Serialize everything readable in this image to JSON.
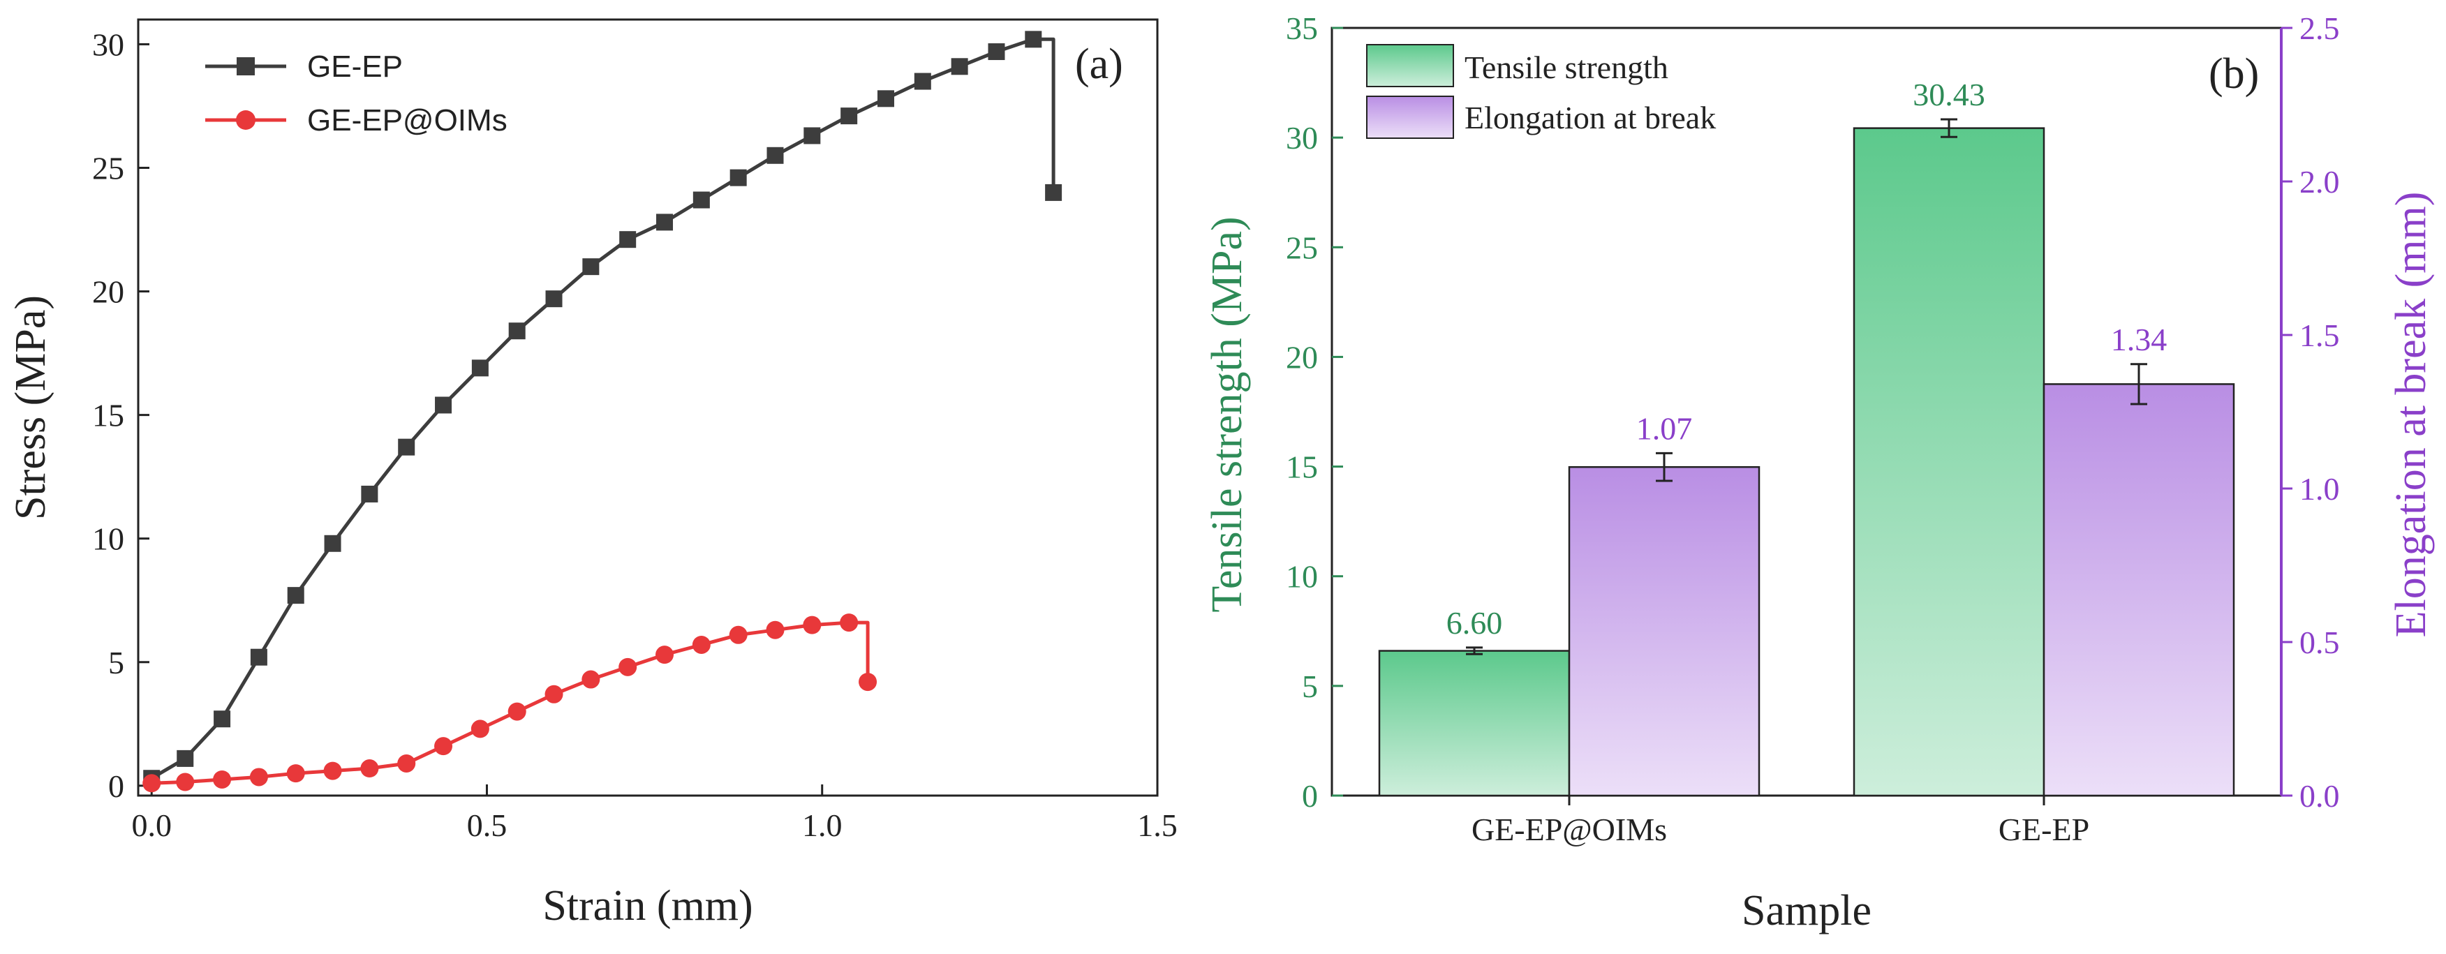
{
  "colors": {
    "ge_ep_line": "#3d3d3d",
    "oims_line": "#e8383a",
    "tensile": "#5cc98c",
    "tensile_light": "#cdeedb",
    "elongation": "#b98ee4",
    "elongation_light": "#ecdff8",
    "tensile_axis": "#2e8b57",
    "elongation_axis": "#8a3fc9"
  },
  "chart_data": [
    {
      "type": "line",
      "panel_label": "(a)",
      "xlabel": "Strain (mm)",
      "ylabel": "Stress (MPa)",
      "xlim": [
        -0.02,
        1.5
      ],
      "ylim": [
        -0.4,
        31
      ],
      "xticks": [
        0.0,
        0.5,
        1.0,
        1.5
      ],
      "xtick_labels": [
        "0.0",
        "0.5",
        "1.0",
        "1.5"
      ],
      "yticks": [
        0,
        5,
        10,
        15,
        20,
        25,
        30
      ],
      "ytick_labels": [
        "0",
        "5",
        "10",
        "15",
        "20",
        "25",
        "30"
      ],
      "legend_position": "top-left",
      "series": [
        {
          "name": "GE-EP",
          "color_key": "ge_ep_line",
          "marker": "square",
          "x": [
            0.0,
            0.05,
            0.105,
            0.16,
            0.215,
            0.27,
            0.325,
            0.38,
            0.435,
            0.49,
            0.545,
            0.6,
            0.655,
            0.71,
            0.765,
            0.82,
            0.875,
            0.93,
            0.985,
            1.04,
            1.095,
            1.15,
            1.205,
            1.26,
            1.315,
            1.345
          ],
          "y": [
            0.3,
            1.1,
            2.7,
            5.2,
            7.7,
            9.8,
            11.8,
            13.7,
            15.4,
            16.9,
            18.4,
            19.7,
            21.0,
            22.1,
            22.8,
            23.7,
            24.6,
            25.5,
            26.3,
            27.1,
            27.8,
            28.5,
            29.1,
            29.7,
            30.2,
            24.0
          ],
          "drop_from_index": 24
        },
        {
          "name": "GE-EP@OIMs",
          "color_key": "oims_line",
          "marker": "circle",
          "x": [
            0.0,
            0.05,
            0.105,
            0.16,
            0.215,
            0.27,
            0.325,
            0.38,
            0.435,
            0.49,
            0.545,
            0.6,
            0.655,
            0.71,
            0.765,
            0.82,
            0.875,
            0.93,
            0.985,
            1.04,
            1.068
          ],
          "y": [
            0.1,
            0.15,
            0.25,
            0.35,
            0.5,
            0.6,
            0.7,
            0.9,
            1.6,
            2.3,
            3.0,
            3.7,
            4.3,
            4.8,
            5.3,
            5.7,
            6.1,
            6.3,
            6.5,
            6.6,
            4.2
          ],
          "drop_from_index": 19
        }
      ]
    },
    {
      "type": "bar",
      "panel_label": "(b)",
      "xlabel": "Sample",
      "ylabel_left": "Tensile strength (MPa)",
      "ylabel_right": "Elongation at break (mm)",
      "categories": [
        "GE-EP@OIMs",
        "GE-EP"
      ],
      "ylim_left": [
        0,
        35
      ],
      "ylim_right": [
        0,
        2.5
      ],
      "yticks_left": [
        0,
        5,
        10,
        15,
        20,
        25,
        30,
        35
      ],
      "ytick_labels_left": [
        "0",
        "5",
        "10",
        "15",
        "20",
        "25",
        "30",
        "35"
      ],
      "yticks_right": [
        0.0,
        0.5,
        1.0,
        1.5,
        2.0,
        2.5
      ],
      "ytick_labels_right": [
        "0.0",
        "0.5",
        "1.0",
        "1.5",
        "2.0",
        "2.5"
      ],
      "legend_position": "top-left",
      "series": [
        {
          "name": "Tensile strength",
          "axis": "left",
          "color_key": "tensile",
          "light_key": "tensile_light",
          "values": [
            6.6,
            30.43
          ],
          "errors": [
            0.15,
            0.4
          ],
          "labels": [
            "6.60",
            "30.43"
          ]
        },
        {
          "name": "Elongation at break",
          "axis": "right",
          "color_key": "elongation",
          "light_key": "elongation_light",
          "values": [
            1.07,
            1.34
          ],
          "errors": [
            0.045,
            0.065
          ],
          "labels": [
            "1.07",
            "1.34"
          ]
        }
      ]
    }
  ]
}
